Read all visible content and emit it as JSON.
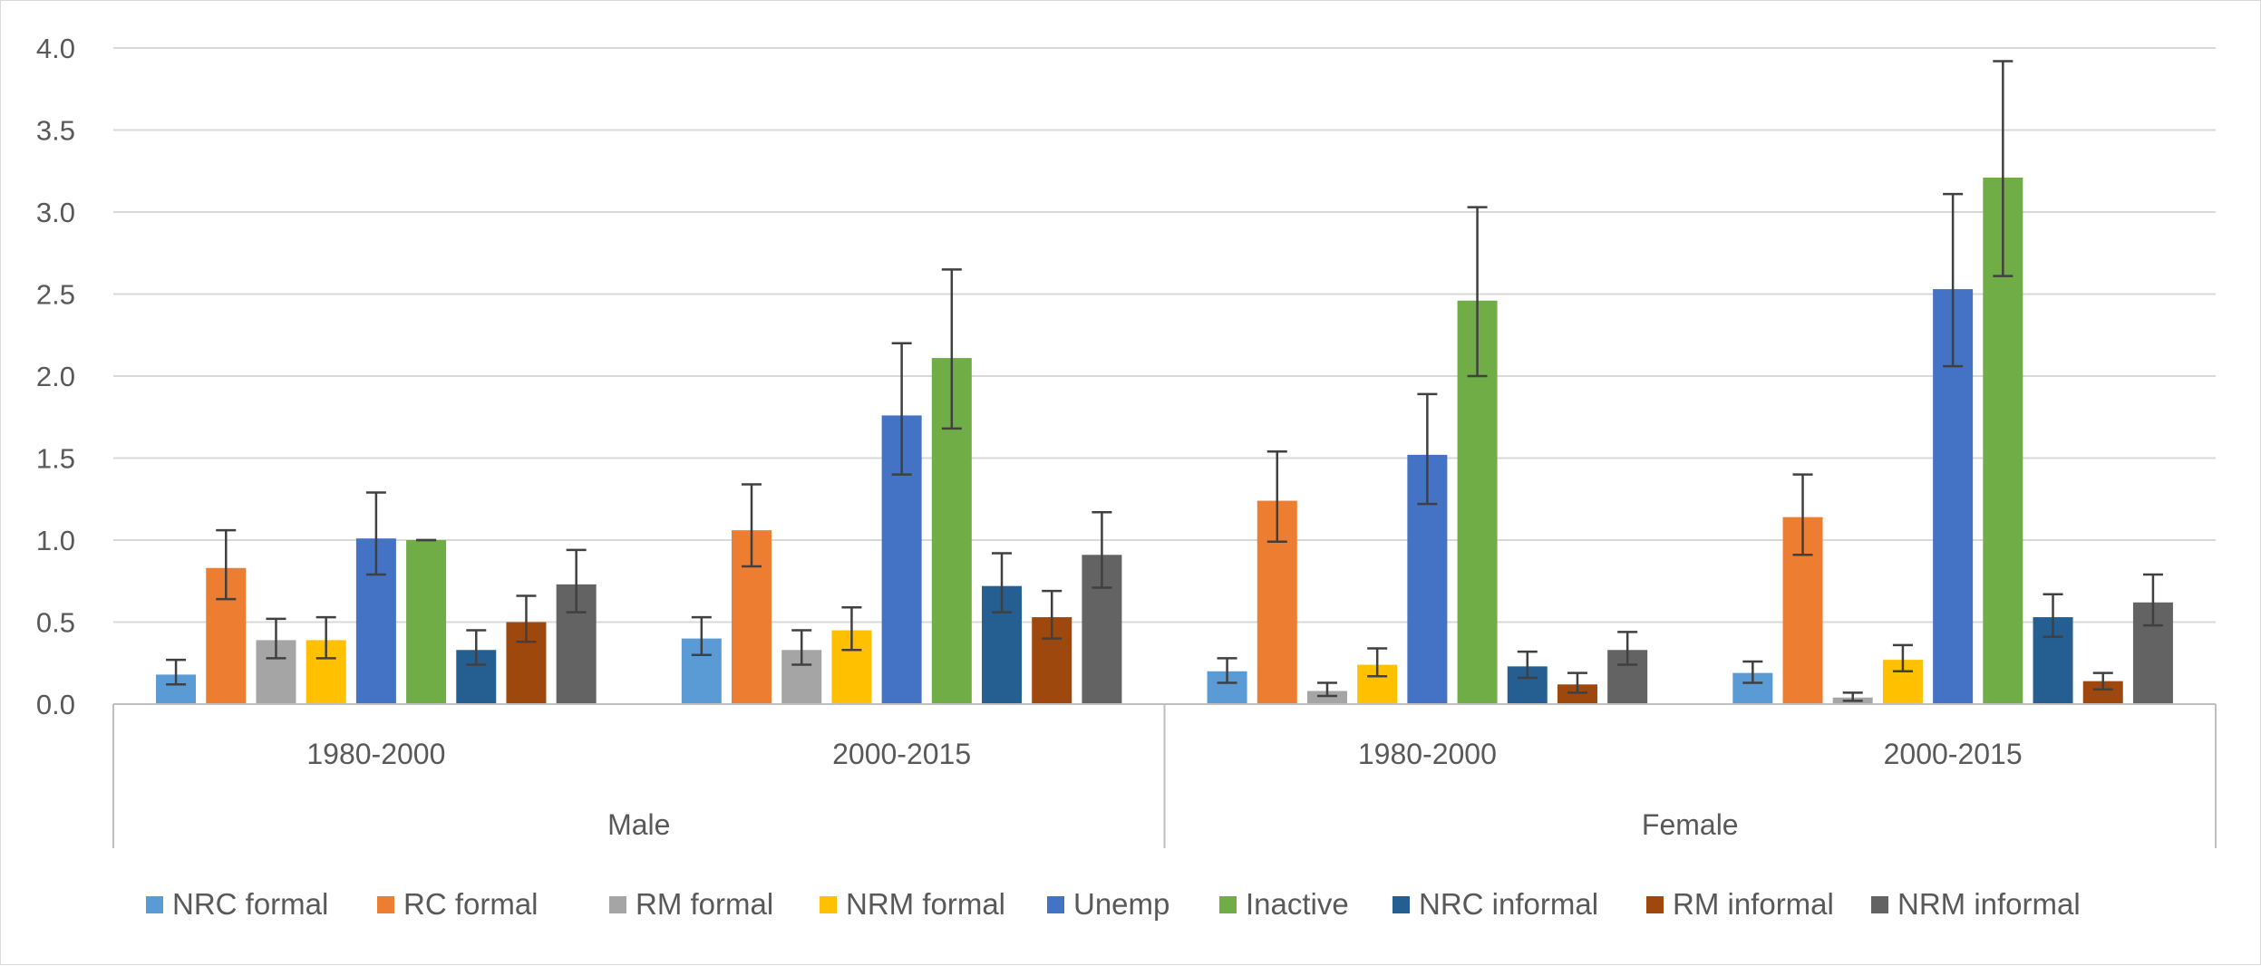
{
  "chart_data": {
    "type": "bar",
    "title": "",
    "xlabel": "",
    "ylabel": "",
    "ylim": [
      0,
      4.0
    ],
    "y_ticks": [
      "0.0",
      "0.5",
      "1.0",
      "1.5",
      "2.0",
      "2.5",
      "3.0",
      "3.5",
      "4.0"
    ],
    "grid": true,
    "legend_position": "bottom",
    "groups": [
      {
        "label": "Male",
        "categories": [
          "1980-2000",
          "2000-2015"
        ]
      },
      {
        "label": "Female",
        "categories": [
          "1980-2000",
          "2000-2015"
        ]
      }
    ],
    "series": [
      {
        "name": "NRC formal",
        "color": "#5B9BD5",
        "values": [
          0.18,
          0.4,
          0.2,
          0.19
        ],
        "err_low": [
          0.12,
          0.3,
          0.13,
          0.13
        ],
        "err_high": [
          0.27,
          0.53,
          0.28,
          0.26
        ]
      },
      {
        "name": "RC formal",
        "color": "#ED7D31",
        "values": [
          0.83,
          1.06,
          1.24,
          1.14
        ],
        "err_low": [
          0.64,
          0.84,
          0.99,
          0.91
        ],
        "err_high": [
          1.06,
          1.34,
          1.54,
          1.4
        ]
      },
      {
        "name": "RM formal",
        "color": "#A5A5A5",
        "values": [
          0.39,
          0.33,
          0.08,
          0.04
        ],
        "err_low": [
          0.28,
          0.24,
          0.05,
          0.02
        ],
        "err_high": [
          0.52,
          0.45,
          0.13,
          0.07
        ]
      },
      {
        "name": "NRM formal",
        "color": "#FFC000",
        "values": [
          0.39,
          0.45,
          0.24,
          0.27
        ],
        "err_low": [
          0.28,
          0.33,
          0.17,
          0.2
        ],
        "err_high": [
          0.53,
          0.59,
          0.34,
          0.36
        ]
      },
      {
        "name": "Unemp",
        "color": "#4472C4",
        "values": [
          1.01,
          1.76,
          1.52,
          2.53
        ],
        "err_low": [
          0.79,
          1.4,
          1.22,
          2.06
        ],
        "err_high": [
          1.29,
          2.2,
          1.89,
          3.11
        ]
      },
      {
        "name": "Inactive",
        "color": "#70AD47",
        "values": [
          1.0,
          2.11,
          2.46,
          3.21
        ],
        "err_low": [
          1.0,
          1.68,
          2.0,
          2.61
        ],
        "err_high": [
          1.0,
          2.65,
          3.03,
          3.92
        ]
      },
      {
        "name": "NRC informal",
        "color": "#255E91",
        "values": [
          0.33,
          0.72,
          0.23,
          0.53
        ],
        "err_low": [
          0.24,
          0.56,
          0.16,
          0.41
        ],
        "err_high": [
          0.45,
          0.92,
          0.32,
          0.67
        ]
      },
      {
        "name": "RM informal",
        "color": "#9E480E",
        "values": [
          0.5,
          0.53,
          0.12,
          0.14
        ],
        "err_low": [
          0.38,
          0.4,
          0.07,
          0.09
        ],
        "err_high": [
          0.66,
          0.69,
          0.19,
          0.19
        ]
      },
      {
        "name": "NRM informal",
        "color": "#636363",
        "values": [
          0.73,
          0.91,
          0.33,
          0.62
        ],
        "err_low": [
          0.56,
          0.71,
          0.24,
          0.48
        ],
        "err_high": [
          0.94,
          1.17,
          0.44,
          0.79
        ]
      }
    ]
  }
}
